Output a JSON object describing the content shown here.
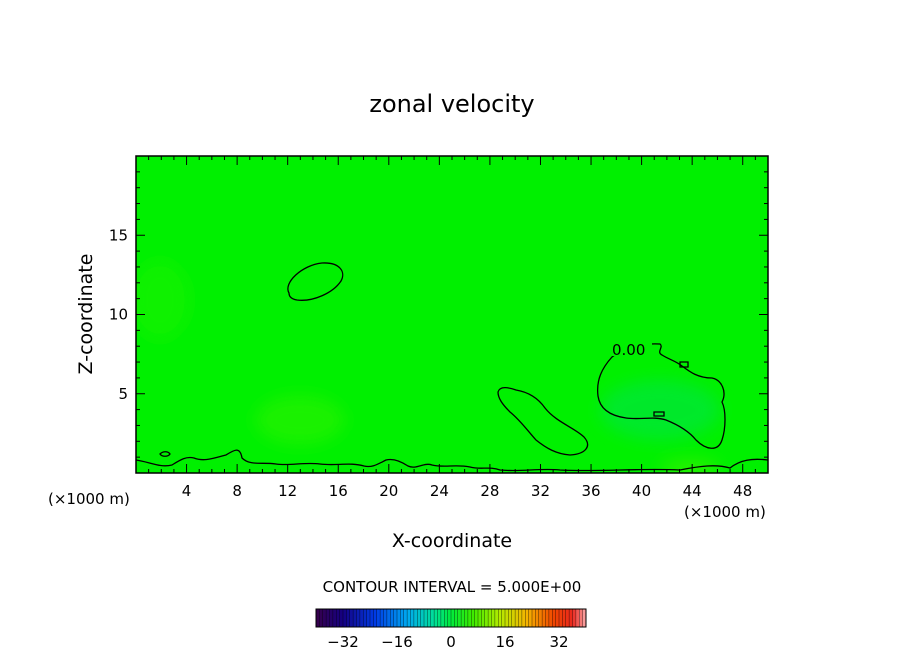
{
  "chart_data": {
    "type": "heatmap",
    "title": "zonal velocity",
    "xlabel": "X-coordinate",
    "ylabel": "Z-coordinate",
    "x_units": "(×1000 m)",
    "xlim": [
      0,
      50
    ],
    "ylim": [
      0,
      20
    ],
    "x_ticks": [
      4,
      8,
      12,
      16,
      20,
      24,
      28,
      32,
      36,
      40,
      44,
      48
    ],
    "y_ticks": [
      5,
      10,
      15
    ],
    "field_value_background": 0,
    "contour_label": "0.00",
    "contour_level": 0,
    "contour_interval_text": "CONTOUR INTERVAL = 5.000E+00",
    "colorbar": {
      "min": -40,
      "max": 40,
      "ticks": [
        -32,
        -16,
        0,
        16,
        32
      ]
    }
  },
  "colors": {
    "field": "#00f000",
    "field_light": "#22f208",
    "field_cool": "#00e63c",
    "contour": "#000000"
  }
}
